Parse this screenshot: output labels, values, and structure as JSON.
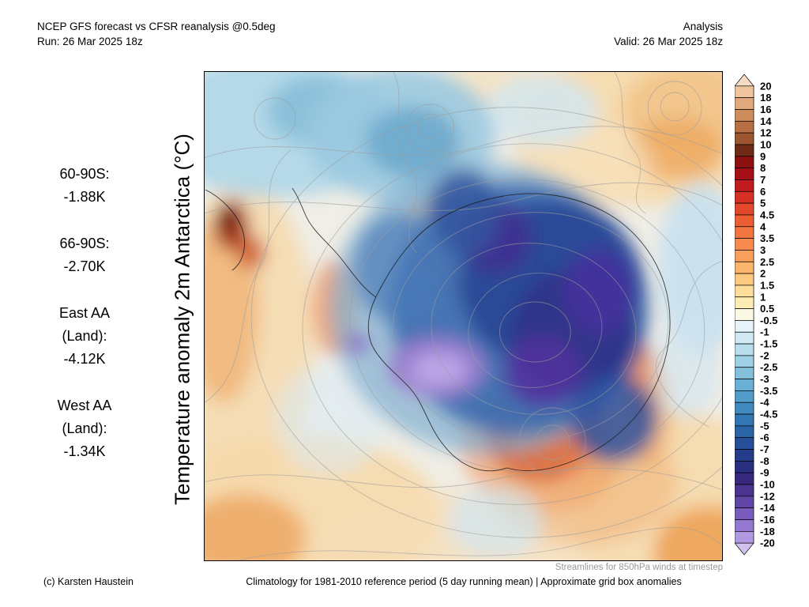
{
  "header": {
    "left_line1": "NCEP GFS forecast vs CFSR reanalysis @0.5deg",
    "left_line2": "Run: 26 Mar 2025 18z",
    "right_line1": "Analysis",
    "right_line2": "Valid: 26 Mar 2025 18z"
  },
  "y_axis_label": "Temperature anomaly 2m Antarctica (°C)",
  "stats": {
    "items": [
      {
        "label": "60-90S:",
        "value": "-1.88K"
      },
      {
        "label": "66-90S:",
        "value": "-2.70K"
      },
      {
        "label": "East AA",
        "label2": "(Land):",
        "value": "-4.12K"
      },
      {
        "label": "West AA",
        "label2": "(Land):",
        "value": "-1.34K"
      }
    ]
  },
  "colorbar": {
    "tick_labels": [
      "20",
      "18",
      "16",
      "14",
      "12",
      "10",
      "9",
      "8",
      "7",
      "6",
      "5",
      "4.5",
      "4",
      "3.5",
      "3",
      "2.5",
      "2",
      "1.5",
      "1",
      "0.5",
      "-0.5",
      "-1",
      "-1.5",
      "-2",
      "-2.5",
      "-3",
      "-3.5",
      "-4",
      "-4.5",
      "-5",
      "-6",
      "-7",
      "-8",
      "-9",
      "-10",
      "-12",
      "-14",
      "-16",
      "-18",
      "-20"
    ],
    "colors_top_to_bottom": [
      "#f6dcc4",
      "#eec49e",
      "#e1a87c",
      "#cf8c5d",
      "#b86f44",
      "#9d5530",
      "#6e2a14",
      "#8c1010",
      "#a51016",
      "#c01c20",
      "#d62f26",
      "#e2492c",
      "#ec5f33",
      "#f2753f",
      "#f78a4c",
      "#fa9f5b",
      "#fcb46c",
      "#fdc981",
      "#fedd9a",
      "#feecb5",
      "#fbf9e3",
      "#e6f3f8",
      "#d0e9f3",
      "#b8ddec",
      "#9ed0e5",
      "#84c0dd",
      "#6aafd4",
      "#539dca",
      "#408abf",
      "#3276b4",
      "#2b63a7",
      "#274f99",
      "#253c8b",
      "#2a2e80",
      "#38297e",
      "#4b3390",
      "#6146a7",
      "#795cbe",
      "#9379d1",
      "#b199e1",
      "#cfc0ec"
    ]
  },
  "notes": {
    "streamlines": "Streamlines for 850hPa winds at timestep"
  },
  "footer": {
    "copyright": "(c) Karsten Haustein",
    "climatology": "Climatology for 1981-2010 reference period (5 day running mean) | Approximate grid box anomalies"
  },
  "chart_data": {
    "type": "heatmap",
    "title": "Temperature anomaly 2m Antarctica (°C)",
    "comparison": "NCEP GFS forecast vs CFSR reanalysis @0.5deg",
    "mode": "Analysis",
    "run": "26 Mar 2025 18z",
    "valid": "26 Mar 2025 18z",
    "units": "K",
    "region_mean_anomalies": [
      {
        "region": "60-90S",
        "value": -1.88
      },
      {
        "region": "66-90S",
        "value": -2.7
      },
      {
        "region": "East AA (Land)",
        "value": -4.12
      },
      {
        "region": "West AA (Land)",
        "value": -1.34
      }
    ],
    "colorbar_ticks": [
      20,
      18,
      16,
      14,
      12,
      10,
      9,
      8,
      7,
      6,
      5,
      4.5,
      4,
      3.5,
      3,
      2.5,
      2,
      1.5,
      1,
      0.5,
      -0.5,
      -1,
      -1.5,
      -2,
      -2.5,
      -3,
      -3.5,
      -4,
      -4.5,
      -5,
      -6,
      -7,
      -8,
      -9,
      -10,
      -12,
      -14,
      -16,
      -18,
      -20
    ],
    "colorbar_range": [
      -20,
      20
    ],
    "overlay": "Streamlines for 850hPa winds at timestep",
    "climatology": "1981-2010 reference period (5 day running mean)",
    "legend_position": "right"
  }
}
